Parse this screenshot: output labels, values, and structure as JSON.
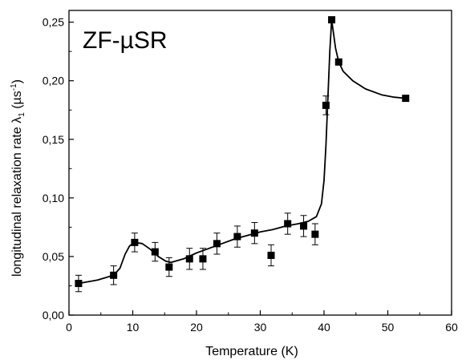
{
  "chart_data": {
    "type": "scatter",
    "annotation": "ZF-µSR",
    "xlabel": "Temperature (K)",
    "ylabel_main": "longitudinal relaxation rate λ",
    "ylabel_sub": "1",
    "ylabel_unit_open": " (µs",
    "ylabel_unit_exp": "-1",
    "ylabel_unit_close": ")",
    "xlim": [
      0,
      60
    ],
    "ylim": [
      0,
      0.26
    ],
    "x_ticks": [
      0,
      10,
      20,
      30,
      40,
      50,
      60
    ],
    "x_tick_labels": [
      "0",
      "10",
      "20",
      "30",
      "40",
      "50",
      "60"
    ],
    "y_ticks": [
      0,
      0.05,
      0.1,
      0.15,
      0.2,
      0.25
    ],
    "y_tick_labels": [
      "0,00",
      "0,05",
      "0,10",
      "0,15",
      "0,20",
      "0,25"
    ],
    "grid": false,
    "legend": "none",
    "marker": "filled-square",
    "color": "#000000",
    "points": [
      {
        "x": 1.5,
        "y": 0.027,
        "err": 0.007
      },
      {
        "x": 7.0,
        "y": 0.034,
        "err": 0.008
      },
      {
        "x": 10.3,
        "y": 0.062,
        "err": 0.008
      },
      {
        "x": 13.5,
        "y": 0.054,
        "err": 0.008
      },
      {
        "x": 15.7,
        "y": 0.041,
        "err": 0.008
      },
      {
        "x": 18.9,
        "y": 0.048,
        "err": 0.009
      },
      {
        "x": 21.0,
        "y": 0.048,
        "err": 0.009
      },
      {
        "x": 23.2,
        "y": 0.061,
        "err": 0.009
      },
      {
        "x": 26.4,
        "y": 0.067,
        "err": 0.009
      },
      {
        "x": 29.1,
        "y": 0.07,
        "err": 0.009
      },
      {
        "x": 31.7,
        "y": 0.051,
        "err": 0.009
      },
      {
        "x": 34.3,
        "y": 0.078,
        "err": 0.009
      },
      {
        "x": 36.8,
        "y": 0.076,
        "err": 0.009
      },
      {
        "x": 38.6,
        "y": 0.069,
        "err": 0.009
      },
      {
        "x": 40.3,
        "y": 0.179,
        "err": 0.008
      },
      {
        "x": 41.2,
        "y": 0.252,
        "err": 0.001
      },
      {
        "x": 42.3,
        "y": 0.216,
        "err": 0.001
      },
      {
        "x": 52.8,
        "y": 0.185,
        "err": 0.001
      }
    ],
    "fit_curve": [
      [
        1.5,
        0.027
      ],
      [
        4.5,
        0.03
      ],
      [
        7.0,
        0.034
      ],
      [
        8.0,
        0.04
      ],
      [
        8.8,
        0.052
      ],
      [
        9.5,
        0.059
      ],
      [
        10.3,
        0.062
      ],
      [
        11.5,
        0.061
      ],
      [
        12.8,
        0.056
      ],
      [
        14.0,
        0.05
      ],
      [
        15.2,
        0.046
      ],
      [
        16.0,
        0.045
      ],
      [
        18.0,
        0.048
      ],
      [
        20.0,
        0.053
      ],
      [
        22.0,
        0.057
      ],
      [
        24.0,
        0.061
      ],
      [
        26.0,
        0.065
      ],
      [
        28.0,
        0.068
      ],
      [
        30.0,
        0.071
      ],
      [
        32.0,
        0.073
      ],
      [
        34.0,
        0.076
      ],
      [
        36.0,
        0.078
      ],
      [
        37.5,
        0.08
      ],
      [
        38.8,
        0.084
      ],
      [
        39.6,
        0.095
      ],
      [
        40.0,
        0.115
      ],
      [
        40.3,
        0.145
      ],
      [
        40.6,
        0.185
      ],
      [
        40.9,
        0.225
      ],
      [
        41.2,
        0.252
      ],
      [
        41.8,
        0.228
      ],
      [
        42.3,
        0.216
      ],
      [
        43.0,
        0.208
      ],
      [
        44.5,
        0.2
      ],
      [
        46.5,
        0.193
      ],
      [
        49.0,
        0.188
      ],
      [
        51.0,
        0.186
      ],
      [
        52.8,
        0.185
      ]
    ]
  }
}
